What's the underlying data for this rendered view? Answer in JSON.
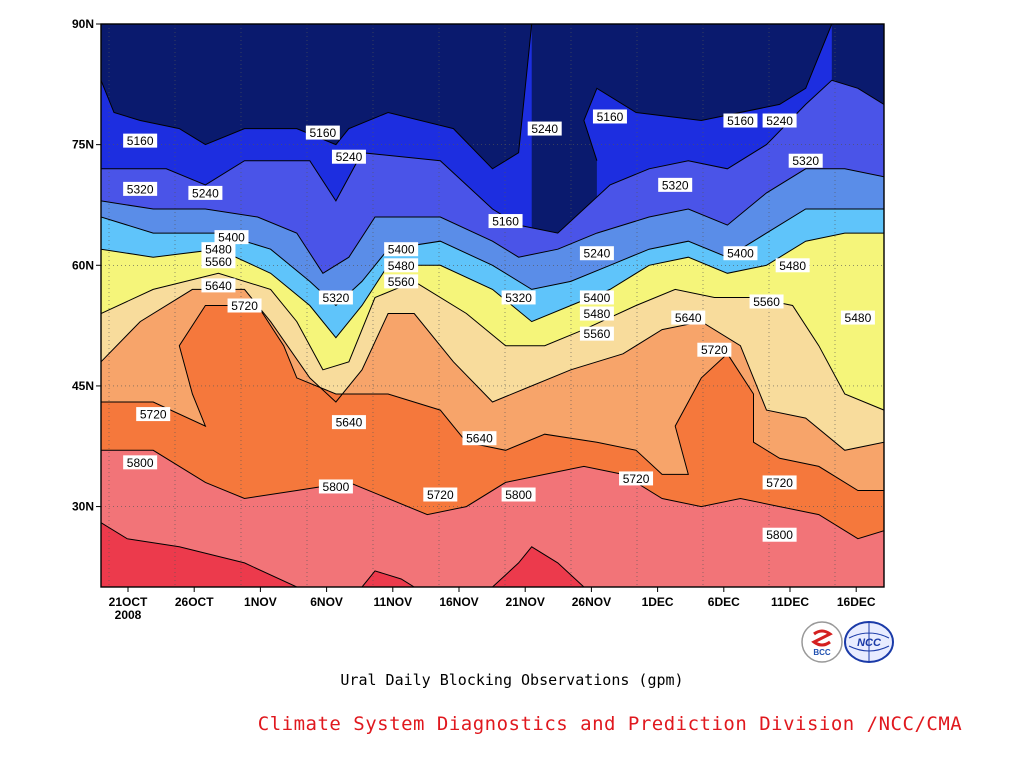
{
  "colors": {
    "levels": [
      "#0a1a6e",
      "#1d2ee0",
      "#4a54e8",
      "#5a8de8",
      "#5fc4fa",
      "#f5f57a",
      "#f8dc9c",
      "#f7a46a",
      "#f5783c",
      "#f27478",
      "#ec3a4c"
    ],
    "credit_text": "#e0181e",
    "bcc_logo_red": "#d42020",
    "bcc_logo_blue": "#2050b0",
    "ncc_logo_blue": "#1a3aa8"
  },
  "title": "Ural Daily Blocking Observations (gpm)",
  "credit": "Climate System Diagnostics and Prediction Division /NCC/CMA",
  "logos": {
    "left": {
      "icon": "bcc-logo-icon",
      "text": "BCC"
    },
    "right": {
      "icon": "ncc-logo-icon",
      "text": "NCC"
    }
  },
  "chart_data": {
    "type": "heatmap",
    "x_ticks": [
      "21OCT",
      "26OCT",
      "1NOV",
      "6NOV",
      "11NOV",
      "16NOV",
      "21NOV",
      "26NOV",
      "1DEC",
      "6DEC",
      "11DEC",
      "16DEC"
    ],
    "x_year_label": "2008",
    "y_ticks": [
      "90N",
      "75N",
      "60N",
      "45N",
      "30N"
    ],
    "xlim": [
      "2008-10-19",
      "2008-12-18"
    ],
    "ylim": [
      20,
      90
    ],
    "grid": true,
    "contour_levels": [
      5160,
      5240,
      5320,
      5400,
      5480,
      5560,
      5640,
      5720,
      5800
    ],
    "contour_labels": [
      {
        "text": "5160",
        "x": "2008-10-22",
        "y": 75.5
      },
      {
        "text": "5160",
        "x": "2008-11-05",
        "y": 76.5
      },
      {
        "text": "5240",
        "x": "2008-11-07",
        "y": 73.5
      },
      {
        "text": "5240",
        "x": "2008-11-22",
        "y": 77
      },
      {
        "text": "5160",
        "x": "2008-11-27",
        "y": 78.5
      },
      {
        "text": "5160",
        "x": "2008-12-07",
        "y": 78
      },
      {
        "text": "5240",
        "x": "2008-12-10",
        "y": 78
      },
      {
        "text": "5320",
        "x": "2008-10-22",
        "y": 69.5
      },
      {
        "text": "5240",
        "x": "2008-10-27",
        "y": 69
      },
      {
        "text": "5320",
        "x": "2008-12-12",
        "y": 73
      },
      {
        "text": "5320",
        "x": "2008-12-02",
        "y": 70
      },
      {
        "text": "5160",
        "x": "2008-11-19",
        "y": 65.5
      },
      {
        "text": "5400",
        "x": "2008-10-29",
        "y": 63.5
      },
      {
        "text": "5480",
        "x": "2008-10-28",
        "y": 62
      },
      {
        "text": "5400",
        "x": "2008-11-11",
        "y": 62
      },
      {
        "text": "5240",
        "x": "2008-11-26",
        "y": 61.5
      },
      {
        "text": "5400",
        "x": "2008-12-07",
        "y": 61.5
      },
      {
        "text": "5560",
        "x": "2008-10-28",
        "y": 60.5
      },
      {
        "text": "5480",
        "x": "2008-11-11",
        "y": 60
      },
      {
        "text": "5480",
        "x": "2008-12-11",
        "y": 60
      },
      {
        "text": "5640",
        "x": "2008-10-28",
        "y": 57.5
      },
      {
        "text": "5560",
        "x": "2008-11-11",
        "y": 58
      },
      {
        "text": "5320",
        "x": "2008-11-06",
        "y": 56
      },
      {
        "text": "5320",
        "x": "2008-11-20",
        "y": 56
      },
      {
        "text": "5400",
        "x": "2008-11-26",
        "y": 56
      },
      {
        "text": "5560",
        "x": "2008-12-09",
        "y": 55.5
      },
      {
        "text": "5720",
        "x": "2008-10-30",
        "y": 55
      },
      {
        "text": "5480",
        "x": "2008-11-26",
        "y": 54
      },
      {
        "text": "5640",
        "x": "2008-12-03",
        "y": 53.5
      },
      {
        "text": "5480",
        "x": "2008-12-16",
        "y": 53.5
      },
      {
        "text": "5560",
        "x": "2008-11-26",
        "y": 51.5
      },
      {
        "text": "5720",
        "x": "2008-12-05",
        "y": 49.5
      },
      {
        "text": "5720",
        "x": "2008-10-23",
        "y": 41.5
      },
      {
        "text": "5640",
        "x": "2008-11-07",
        "y": 40.5
      },
      {
        "text": "5640",
        "x": "2008-11-17",
        "y": 38.5
      },
      {
        "text": "5800",
        "x": "2008-10-22",
        "y": 35.5
      },
      {
        "text": "5720",
        "x": "2008-11-29",
        "y": 33.5
      },
      {
        "text": "5720",
        "x": "2008-12-10",
        "y": 33
      },
      {
        "text": "5800",
        "x": "2008-11-06",
        "y": 32.5
      },
      {
        "text": "5720",
        "x": "2008-11-14",
        "y": 31.5
      },
      {
        "text": "5800",
        "x": "2008-11-20",
        "y": 31.5
      },
      {
        "text": "5800",
        "x": "2008-12-10",
        "y": 26.5
      }
    ],
    "contour_lines": [
      {
        "level": 5160,
        "points": [
          [
            "2008-10-19",
            83
          ],
          [
            "2008-10-20",
            79
          ],
          [
            "2008-10-22",
            78
          ],
          [
            "2008-10-25",
            77
          ],
          [
            "2008-10-27",
            75
          ],
          [
            "2008-10-30",
            77
          ],
          [
            "2008-11-03",
            77
          ],
          [
            "2008-11-06",
            75
          ],
          [
            "2008-11-07",
            77
          ],
          [
            "2008-11-10",
            79
          ],
          [
            "2008-11-15",
            77
          ],
          [
            "2008-11-18",
            72
          ],
          [
            "2008-11-20",
            74
          ],
          [
            "2008-11-21",
            90
          ]
        ]
      },
      {
        "level": 5160,
        "points": [
          [
            "2008-11-26",
            73
          ],
          [
            "2008-11-25",
            78
          ],
          [
            "2008-11-26",
            82
          ],
          [
            "2008-11-29",
            79
          ],
          [
            "2008-12-04",
            78
          ],
          [
            "2008-12-10",
            80
          ],
          [
            "2008-12-12",
            82
          ],
          [
            "2008-12-14",
            90
          ]
        ]
      },
      {
        "level": 5240,
        "points": [
          [
            "2008-10-19",
            72
          ],
          [
            "2008-10-24",
            72
          ],
          [
            "2008-10-27",
            70
          ],
          [
            "2008-10-30",
            73
          ],
          [
            "2008-11-04",
            73
          ],
          [
            "2008-11-06",
            68
          ],
          [
            "2008-11-08",
            74
          ],
          [
            "2008-11-14",
            73
          ],
          [
            "2008-11-18",
            67
          ],
          [
            "2008-11-20",
            65
          ],
          [
            "2008-11-23",
            64
          ],
          [
            "2008-11-25",
            67
          ],
          [
            "2008-11-27",
            70
          ],
          [
            "2008-11-30",
            72
          ],
          [
            "2008-12-03",
            73
          ],
          [
            "2008-12-06",
            72
          ],
          [
            "2008-12-09",
            75
          ],
          [
            "2008-12-12",
            80
          ],
          [
            "2008-12-14",
            83
          ],
          [
            "2008-12-16",
            82
          ],
          [
            "2008-12-18",
            80
          ]
        ]
      },
      {
        "level": 5320,
        "points": [
          [
            "2008-10-19",
            68
          ],
          [
            "2008-10-23",
            67
          ],
          [
            "2008-10-27",
            67
          ],
          [
            "2008-10-31",
            66
          ],
          [
            "2008-11-03",
            64
          ],
          [
            "2008-11-05",
            59
          ],
          [
            "2008-11-07",
            61
          ],
          [
            "2008-11-09",
            66
          ],
          [
            "2008-11-14",
            66
          ],
          [
            "2008-11-18",
            63
          ],
          [
            "2008-11-20",
            61
          ],
          [
            "2008-11-23",
            62
          ],
          [
            "2008-11-26",
            64
          ],
          [
            "2008-11-30",
            66
          ],
          [
            "2008-12-03",
            67
          ],
          [
            "2008-12-06",
            65
          ],
          [
            "2008-12-09",
            69
          ],
          [
            "2008-12-12",
            72
          ],
          [
            "2008-12-15",
            72
          ],
          [
            "2008-12-18",
            71
          ]
        ]
      },
      {
        "level": 5400,
        "points": [
          [
            "2008-10-19",
            66
          ],
          [
            "2008-10-23",
            64
          ],
          [
            "2008-10-28",
            64
          ],
          [
            "2008-11-01",
            62
          ],
          [
            "2008-11-04",
            58
          ],
          [
            "2008-11-06",
            55
          ],
          [
            "2008-11-08",
            58
          ],
          [
            "2008-11-10",
            62
          ],
          [
            "2008-11-14",
            63
          ],
          [
            "2008-11-18",
            60
          ],
          [
            "2008-11-21",
            57
          ],
          [
            "2008-11-24",
            58
          ],
          [
            "2008-11-27",
            60
          ],
          [
            "2008-11-30",
            62
          ],
          [
            "2008-12-03",
            63
          ],
          [
            "2008-12-06",
            61
          ],
          [
            "2008-12-09",
            64
          ],
          [
            "2008-12-12",
            67
          ],
          [
            "2008-12-15",
            67
          ],
          [
            "2008-12-18",
            67
          ]
        ]
      },
      {
        "level": 5480,
        "points": [
          [
            "2008-10-19",
            62
          ],
          [
            "2008-10-23",
            61
          ],
          [
            "2008-10-28",
            62
          ],
          [
            "2008-11-01",
            59
          ],
          [
            "2008-11-04",
            55
          ],
          [
            "2008-11-06",
            51
          ],
          [
            "2008-11-08",
            55
          ],
          [
            "2008-11-10",
            60
          ],
          [
            "2008-11-14",
            60
          ],
          [
            "2008-11-18",
            57
          ],
          [
            "2008-11-21",
            53
          ],
          [
            "2008-11-24",
            55
          ],
          [
            "2008-11-27",
            57
          ],
          [
            "2008-11-30",
            60
          ],
          [
            "2008-12-03",
            61
          ],
          [
            "2008-12-06",
            59
          ],
          [
            "2008-12-09",
            60
          ],
          [
            "2008-12-12",
            63
          ],
          [
            "2008-12-15",
            64
          ],
          [
            "2008-12-18",
            64
          ]
        ]
      },
      {
        "level": 5560,
        "points": [
          [
            "2008-10-19",
            54
          ],
          [
            "2008-10-23",
            57
          ],
          [
            "2008-10-28",
            59
          ],
          [
            "2008-11-01",
            57
          ],
          [
            "2008-11-03",
            53
          ],
          [
            "2008-11-05",
            47
          ],
          [
            "2008-11-07",
            48
          ],
          [
            "2008-11-09",
            56
          ],
          [
            "2008-11-12",
            58
          ],
          [
            "2008-11-16",
            54
          ],
          [
            "2008-11-19",
            50
          ],
          [
            "2008-11-22",
            50
          ],
          [
            "2008-11-25",
            52
          ],
          [
            "2008-11-29",
            55
          ],
          [
            "2008-12-02",
            57
          ],
          [
            "2008-12-05",
            56
          ],
          [
            "2008-12-08",
            56
          ],
          [
            "2008-12-11",
            55
          ],
          [
            "2008-12-13",
            50
          ],
          [
            "2008-12-15",
            44
          ],
          [
            "2008-12-18",
            42
          ]
        ]
      },
      {
        "level": 5640,
        "points": [
          [
            "2008-10-19",
            48
          ],
          [
            "2008-10-22",
            53
          ],
          [
            "2008-10-26",
            57
          ],
          [
            "2008-10-30",
            57
          ],
          [
            "2008-11-01",
            53
          ],
          [
            "2008-11-04",
            46
          ],
          [
            "2008-11-06",
            43
          ],
          [
            "2008-11-08",
            47
          ],
          [
            "2008-11-10",
            54
          ],
          [
            "2008-11-12",
            54
          ],
          [
            "2008-11-15",
            48
          ],
          [
            "2008-11-18",
            43
          ],
          [
            "2008-11-21",
            45
          ],
          [
            "2008-11-24",
            47
          ],
          [
            "2008-11-28",
            49
          ],
          [
            "2008-12-01",
            52
          ],
          [
            "2008-12-04",
            53
          ],
          [
            "2008-12-07",
            50
          ],
          [
            "2008-12-09",
            42
          ],
          [
            "2008-12-12",
            41
          ],
          [
            "2008-12-15",
            37
          ],
          [
            "2008-12-18",
            38
          ]
        ]
      },
      {
        "level": 5720,
        "points": [
          [
            "2008-10-19",
            43
          ],
          [
            "2008-10-23",
            43
          ],
          [
            "2008-10-27",
            40
          ],
          [
            "2008-10-26",
            44
          ],
          [
            "2008-10-25",
            50
          ],
          [
            "2008-10-27",
            55
          ],
          [
            "2008-10-31",
            55
          ],
          [
            "2008-11-02",
            50
          ],
          [
            "2008-11-03",
            46
          ],
          [
            "2008-11-06",
            44
          ],
          [
            "2008-11-10",
            44
          ],
          [
            "2008-11-14",
            42
          ],
          [
            "2008-11-16",
            38
          ],
          [
            "2008-11-19",
            37
          ],
          [
            "2008-11-22",
            39
          ],
          [
            "2008-11-26",
            38
          ],
          [
            "2008-11-29",
            37
          ],
          [
            "2008-12-01",
            34
          ],
          [
            "2008-12-03",
            34
          ],
          [
            "2008-12-02",
            40
          ],
          [
            "2008-12-04",
            46
          ],
          [
            "2008-12-06",
            49
          ],
          [
            "2008-12-08",
            44
          ],
          [
            "2008-12-08",
            38
          ],
          [
            "2008-12-10",
            36
          ],
          [
            "2008-12-13",
            35
          ],
          [
            "2008-12-16",
            32
          ],
          [
            "2008-12-18",
            32
          ]
        ]
      },
      {
        "level": 5800,
        "points": [
          [
            "2008-10-19",
            37
          ],
          [
            "2008-10-23",
            37
          ],
          [
            "2008-10-27",
            33
          ],
          [
            "2008-10-30",
            31
          ],
          [
            "2008-11-03",
            32
          ],
          [
            "2008-11-07",
            33
          ],
          [
            "2008-11-10",
            31
          ],
          [
            "2008-11-13",
            29
          ],
          [
            "2008-11-16",
            30
          ],
          [
            "2008-11-19",
            33
          ],
          [
            "2008-11-22",
            34
          ],
          [
            "2008-11-25",
            35
          ],
          [
            "2008-11-28",
            34
          ],
          [
            "2008-12-01",
            31
          ],
          [
            "2008-12-04",
            30
          ],
          [
            "2008-12-07",
            31
          ],
          [
            "2008-12-10",
            30
          ],
          [
            "2008-12-13",
            29
          ],
          [
            "2008-12-16",
            26
          ],
          [
            "2008-12-18",
            27
          ]
        ]
      },
      {
        "level": 5880,
        "points": [
          [
            "2008-10-19",
            28
          ],
          [
            "2008-10-21",
            26
          ],
          [
            "2008-10-25",
            25
          ],
          [
            "2008-10-30",
            23
          ],
          [
            "2008-11-03",
            20
          ]
        ]
      },
      {
        "level": 5880,
        "points": [
          [
            "2008-11-08",
            20
          ],
          [
            "2008-11-09",
            22
          ],
          [
            "2008-11-11",
            21
          ],
          [
            "2008-11-12",
            20
          ]
        ]
      },
      {
        "level": 5880,
        "points": [
          [
            "2008-11-18",
            20
          ],
          [
            "2008-11-20",
            23
          ],
          [
            "2008-11-21",
            25
          ],
          [
            "2008-11-23",
            23
          ],
          [
            "2008-11-25",
            20
          ]
        ]
      }
    ]
  }
}
